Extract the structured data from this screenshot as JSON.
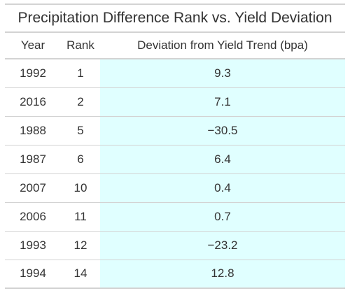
{
  "title": "Precipitation Difference Rank vs. Yield Deviation",
  "columns": [
    "Year",
    "Rank",
    "Deviation from Yield Trend (bpa)"
  ],
  "rows": [
    {
      "year": "1992",
      "rank": "1",
      "deviation": "9.3"
    },
    {
      "year": "2016",
      "rank": "2",
      "deviation": "7.1"
    },
    {
      "year": "1988",
      "rank": "5",
      "deviation": "−30.5"
    },
    {
      "year": "1987",
      "rank": "6",
      "deviation": "6.4"
    },
    {
      "year": "2007",
      "rank": "10",
      "deviation": "0.4"
    },
    {
      "year": "2006",
      "rank": "11",
      "deviation": "0.7"
    },
    {
      "year": "1993",
      "rank": "12",
      "deviation": "−23.2"
    },
    {
      "year": "1994",
      "rank": "14",
      "deviation": "12.8"
    }
  ],
  "colors": {
    "highlight": "#e0ffff",
    "rule": "#d3d3d3",
    "text": "#333333"
  },
  "chart_data": {
    "type": "table",
    "title": "Precipitation Difference Rank vs. Yield Deviation",
    "columns": [
      "Year",
      "Rank",
      "Deviation from Yield Trend (bpa)"
    ],
    "rows": [
      [
        1992,
        1,
        9.3
      ],
      [
        2016,
        2,
        7.1
      ],
      [
        1988,
        5,
        -30.5
      ],
      [
        1987,
        6,
        6.4
      ],
      [
        2007,
        10,
        0.4
      ],
      [
        2006,
        11,
        0.7
      ],
      [
        1993,
        12,
        -23.2
      ],
      [
        1994,
        14,
        12.8
      ]
    ]
  }
}
